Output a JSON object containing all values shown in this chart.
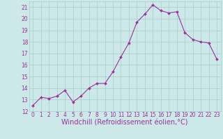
{
  "x": [
    0,
    1,
    2,
    3,
    4,
    5,
    6,
    7,
    8,
    9,
    10,
    11,
    12,
    13,
    14,
    15,
    16,
    17,
    18,
    19,
    20,
    21,
    22,
    23
  ],
  "y": [
    12.5,
    13.2,
    13.1,
    13.3,
    13.8,
    12.8,
    13.3,
    14.0,
    14.4,
    14.4,
    15.4,
    16.7,
    17.9,
    19.7,
    20.4,
    21.2,
    20.7,
    20.5,
    20.6,
    18.8,
    18.2,
    18.0,
    17.9,
    16.5
  ],
  "line_color": "#993399",
  "marker": "D",
  "marker_size": 2,
  "bg_color": "#cce8e8",
  "grid_color": "#aacccc",
  "xlabel": "Windchill (Refroidissement éolien,°C)",
  "ylim": [
    12,
    21.5
  ],
  "xlim": [
    -0.5,
    23.5
  ],
  "yticks": [
    12,
    13,
    14,
    15,
    16,
    17,
    18,
    19,
    20,
    21
  ],
  "xticks": [
    0,
    1,
    2,
    3,
    4,
    5,
    6,
    7,
    8,
    9,
    10,
    11,
    12,
    13,
    14,
    15,
    16,
    17,
    18,
    19,
    20,
    21,
    22,
    23
  ],
  "tick_fontsize": 5.5,
  "xlabel_fontsize": 7,
  "label_color": "#993399"
}
